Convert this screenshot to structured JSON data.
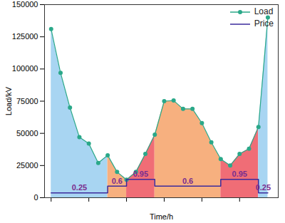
{
  "chart_data": {
    "type": "line",
    "x_label": "Time/h",
    "y_label": "Load/kV",
    "x": [
      0,
      1,
      2,
      3,
      4,
      5,
      6,
      7,
      8,
      9,
      10,
      11,
      12,
      13,
      14,
      15,
      16,
      17,
      18,
      19,
      20,
      21,
      22,
      23
    ],
    "xlim": [
      -0.7,
      24.1
    ],
    "xticks": [
      0,
      4,
      8,
      12,
      16,
      20
    ],
    "ylim": [
      0,
      150000
    ],
    "yticks": [
      0,
      25000,
      50000,
      75000,
      100000,
      125000,
      150000
    ],
    "y2lim": [
      0,
      10
    ],
    "tick_labels": "y",
    "grid": false,
    "legend": "top-right",
    "series": [
      {
        "name": "Load",
        "color": "#2aa889",
        "marker": "circle",
        "line_style": "solid",
        "values": [
          131000,
          97000,
          70000,
          47000,
          42000,
          27000,
          33000,
          20000,
          14000,
          20000,
          34000,
          49000,
          75000,
          75500,
          69000,
          69000,
          58000,
          43000,
          30000,
          25000,
          34000,
          38000,
          55000,
          140000
        ]
      },
      {
        "name": "Price",
        "type": "step",
        "axis": "y2",
        "color": "#3b2a9c",
        "line_style": "solid",
        "data_labels": true,
        "x": [
          0,
          6,
          8,
          11,
          18,
          22
        ],
        "values": [
          0.25,
          0.6,
          0.95,
          0.6,
          0.95,
          0.25
        ],
        "colors": [
          "#a8d5f2",
          "#f7b07f",
          "#f06d76",
          "#f7b07f",
          "#f06d76",
          "#a8d5f2"
        ]
      }
    ]
  }
}
